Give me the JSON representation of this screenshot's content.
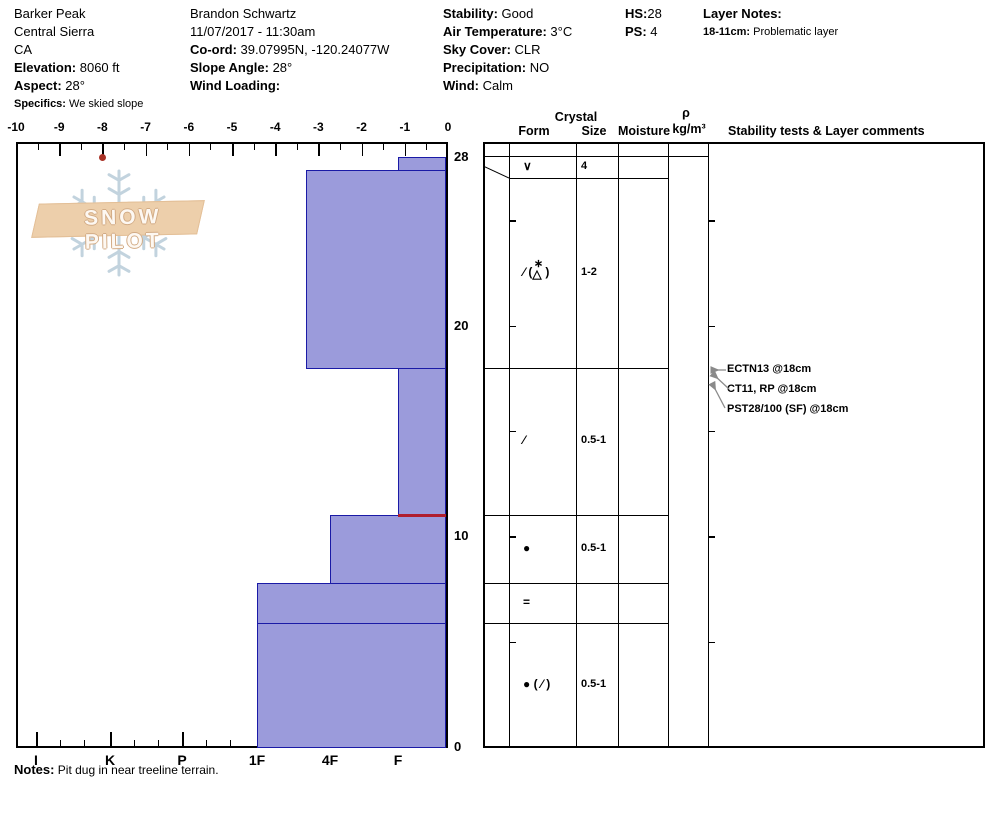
{
  "header": {
    "columns": [
      {
        "name": "location",
        "lines": [
          {
            "t": "Barker Peak"
          },
          {
            "t": "Central Sierra"
          },
          {
            "t": "CA"
          },
          {
            "b": "Elevation:",
            "t": " 8060 ft"
          },
          {
            "b": "Aspect:",
            "t": " 28°"
          },
          {
            "b": "Specifics:",
            "t": " We skied slope",
            "small": true
          }
        ]
      },
      {
        "name": "observer",
        "lines": [
          {
            "t": "Brandon Schwartz"
          },
          {
            "t": "11/07/2017 - 11:30am"
          },
          {
            "b": "Co-ord:",
            "t": " 39.07995N, -120.24077W"
          },
          {
            "b": "Slope Angle:",
            "t": " 28°"
          },
          {
            "b": "Wind Loading:",
            "t": ""
          }
        ]
      },
      {
        "name": "conditions",
        "lines": [
          {
            "b": "Stability:",
            "t": " Good"
          },
          {
            "b": "Air Temperature:",
            "t": " 3°C"
          },
          {
            "b": "Sky Cover:",
            "t": " CLR"
          },
          {
            "b": "Precipitation:",
            "t": " NO"
          },
          {
            "b": "Wind:",
            "t": " Calm"
          }
        ]
      },
      {
        "name": "snow-summary",
        "lines": [
          {
            "b": "HS:",
            "t": "28"
          },
          {
            "b": "PS:",
            "t": " 4"
          }
        ]
      },
      {
        "name": "layer-notes",
        "lines": [
          {
            "b": "Layer Notes:",
            "t": ""
          },
          {
            "b": "18-11cm:",
            "t": " Problematic layer",
            "small": true
          }
        ]
      }
    ]
  },
  "logo": {
    "text": "SNOW PILOT"
  },
  "table_headers": {
    "crystal": "Crystal",
    "form": "Form",
    "size": "Size",
    "moisture": "Moisture",
    "rho": "ρ",
    "rho_units": "kg/m³",
    "stability": "Stability tests & Layer comments"
  },
  "chart_data": {
    "type": "snow-pit-profile",
    "hs_cm": 28,
    "temp_axis": {
      "unit": "°C",
      "range": [
        -10,
        0
      ],
      "ticks": [
        "-10",
        "-9",
        "-8",
        "-7",
        "-6",
        "-5",
        "-4",
        "-3",
        "-2",
        "-1",
        "0"
      ]
    },
    "hardness_axis": {
      "categories": [
        "I",
        "K",
        "P",
        "1F",
        "4F",
        "F"
      ]
    },
    "depth_axis": {
      "unit": "cm",
      "range": [
        0,
        28
      ],
      "labeled_ticks": [
        28,
        20,
        10,
        0
      ],
      "minor_ticks": [
        25,
        20,
        15,
        10,
        5
      ]
    },
    "temperature_points": [
      {
        "temp_c": -8,
        "depth_cm": 28
      }
    ],
    "layers": [
      {
        "top_cm": 28,
        "bottom_cm": 27.4,
        "hardness": "F",
        "grain_form": "∨",
        "grain_size_mm": "4",
        "expanded_row": true
      },
      {
        "top_cm": 27.4,
        "bottom_cm": 18,
        "hardness": "4F+",
        "grain_form": "⁄ ({PP})",
        "grain_size_mm": "1-2"
      },
      {
        "top_cm": 18,
        "bottom_cm": 11,
        "hardness": "F",
        "grain_form": "⁄",
        "grain_size_mm": "0.5-1",
        "problematic": true
      },
      {
        "top_cm": 11,
        "bottom_cm": 7.8,
        "hardness": "4F",
        "grain_form": "●",
        "grain_size_mm": "0.5-1"
      },
      {
        "top_cm": 7.8,
        "bottom_cm": 5.9,
        "hardness": "1F",
        "grain_form": "=",
        "grain_size_mm": ""
      },
      {
        "top_cm": 5.9,
        "bottom_cm": 0,
        "hardness": "1F",
        "grain_form": "● ( ⁄ )",
        "grain_size_mm": "0.5-1"
      }
    ],
    "stability_tests": [
      {
        "text": "ECTN13 @18cm"
      },
      {
        "text": "CT11, RP @18cm"
      },
      {
        "text": "PST28/100 (SF) @18cm"
      }
    ],
    "colors": {
      "bar_fill": "#9b9bdb",
      "bar_border": "#1a1aa6",
      "problem_line": "#b01e2e",
      "temp_dot": "#a93226",
      "arrow_gray": "#8a8a8a"
    }
  },
  "notes": {
    "label": "Notes:",
    "text": " Pit dug in near treeline terrain."
  }
}
